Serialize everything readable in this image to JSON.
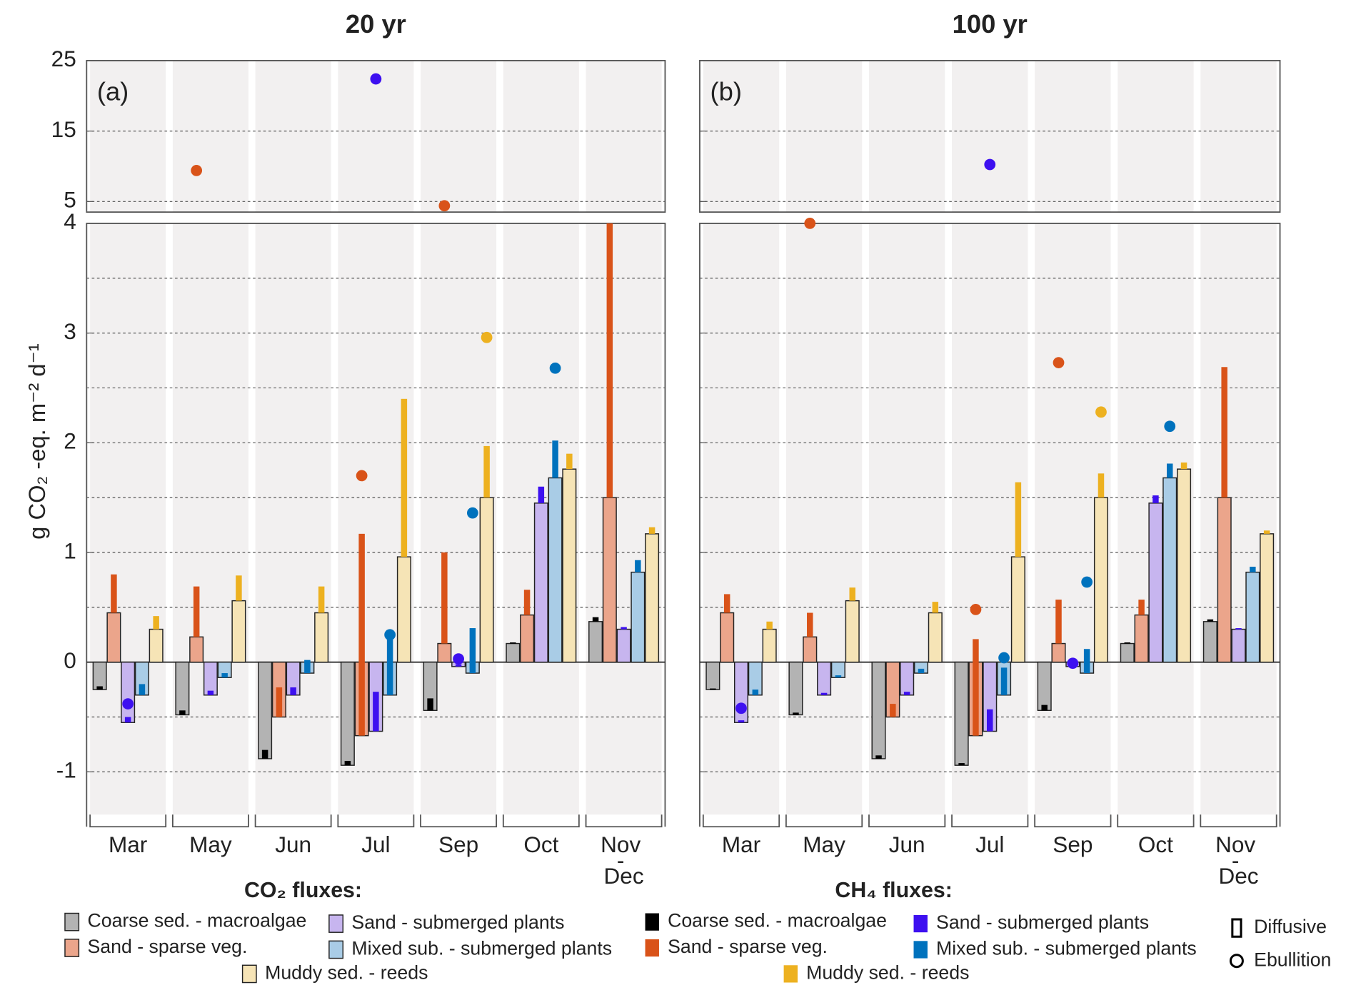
{
  "legend": {
    "co2_title": "CO₂ fluxes:",
    "ch4_title": "CH₄ fluxes:",
    "diffusive": "Diffusive",
    "ebullition": "Ebullition"
  },
  "chart_data": [
    {
      "type": "bar",
      "title": "20 yr",
      "panel_label": "(a)",
      "ylabel": "g CO₂ -eq. m⁻² d⁻¹",
      "categories": [
        "Mar",
        "May",
        "Jun",
        "Jul",
        "Sep",
        "Oct",
        "Nov - Dec"
      ],
      "ylim": [
        -1.5,
        4
      ],
      "yticks": [
        -1,
        0,
        1,
        2,
        3,
        4
      ],
      "minor_yticks": [
        -0.5,
        0.5,
        1.5,
        2.5,
        3.5
      ],
      "ylim_upper": [
        3.5,
        25
      ],
      "yticks_upper": [
        5,
        15,
        25
      ],
      "grid": true,
      "series": [
        {
          "name": "Coarse sed. - macroalgae",
          "gas": "CO2",
          "color": "#b3b3b3",
          "values": [
            -0.25,
            -0.48,
            -0.88,
            -0.94,
            -0.44,
            0.17,
            0.37
          ]
        },
        {
          "name": "Sand - sparse veg.",
          "gas": "CO2",
          "color": "#eba58b",
          "values": [
            0.45,
            0.23,
            -0.5,
            -0.67,
            0.17,
            0.43,
            1.5
          ]
        },
        {
          "name": "Sand - submerged plants",
          "gas": "CO2",
          "color": "#c7b5ef",
          "values": [
            -0.55,
            -0.3,
            -0.3,
            -0.63,
            -0.04,
            1.45,
            0.3
          ]
        },
        {
          "name": "Mixed sub. - submerged plants",
          "gas": "CO2",
          "color": "#a9cce6",
          "values": [
            -0.3,
            -0.14,
            -0.1,
            -0.3,
            -0.1,
            1.68,
            0.82
          ]
        },
        {
          "name": "Muddy sed. - reeds",
          "gas": "CO2",
          "color": "#f6e4b6",
          "values": [
            0.3,
            0.56,
            0.45,
            0.96,
            1.5,
            1.76,
            1.17
          ]
        },
        {
          "name": "Coarse sed. - macroalgae",
          "gas": "CH4",
          "color": "#000000",
          "values": [
            0.03,
            0.04,
            0.08,
            0.04,
            0.11,
            0.01,
            0.04
          ],
          "ebullition": [
            null,
            null,
            null,
            null,
            null,
            null,
            null
          ]
        },
        {
          "name": "Sand - sparse veg.",
          "gas": "CH4",
          "color": "#d95319",
          "values": [
            0.35,
            0.46,
            0.27,
            1.84,
            0.83,
            0.23,
            2.5
          ],
          "ebullition": [
            null,
            9.4,
            null,
            1.7,
            4.4,
            null,
            null
          ]
        },
        {
          "name": "Sand - submerged plants",
          "gas": "CH4",
          "color": "#3d10f0",
          "values": [
            0.05,
            0.04,
            0.07,
            0.36,
            0.02,
            0.15,
            0.02
          ],
          "ebullition": [
            -0.38,
            null,
            null,
            22.4,
            0.03,
            null,
            null
          ]
        },
        {
          "name": "Mixed sub. - submerged plants",
          "gas": "CH4",
          "color": "#0072bd",
          "values": [
            0.1,
            0.04,
            0.12,
            0.55,
            0.41,
            0.34,
            0.11
          ],
          "ebullition": [
            null,
            null,
            null,
            0.25,
            1.36,
            2.68,
            null
          ]
        },
        {
          "name": "Muddy sed. - reeds",
          "gas": "CH4",
          "color": "#edb120",
          "values": [
            0.12,
            0.23,
            0.24,
            1.44,
            0.47,
            0.14,
            0.06
          ],
          "ebullition": [
            null,
            null,
            null,
            null,
            2.96,
            null,
            null
          ]
        }
      ]
    },
    {
      "type": "bar",
      "title": "100 yr",
      "panel_label": "(b)",
      "categories": [
        "Mar",
        "May",
        "Jun",
        "Jul",
        "Sep",
        "Oct",
        "Nov - Dec"
      ],
      "ylim": [
        -1.5,
        4
      ],
      "yticks": [
        -1,
        0,
        1,
        2,
        3,
        4
      ],
      "minor_yticks": [
        -0.5,
        0.5,
        1.5,
        2.5,
        3.5
      ],
      "ylim_upper": [
        3.5,
        25
      ],
      "yticks_upper": [
        5,
        15,
        25
      ],
      "grid": true,
      "series": [
        {
          "name": "Coarse sed. - macroalgae",
          "gas": "CO2",
          "color": "#b3b3b3",
          "values": [
            -0.25,
            -0.48,
            -0.88,
            -0.94,
            -0.44,
            0.17,
            0.37
          ]
        },
        {
          "name": "Sand - sparse veg.",
          "gas": "CO2",
          "color": "#eba58b",
          "values": [
            0.45,
            0.23,
            -0.5,
            -0.67,
            0.17,
            0.43,
            1.5
          ]
        },
        {
          "name": "Sand - submerged plants",
          "gas": "CO2",
          "color": "#c7b5ef",
          "values": [
            -0.55,
            -0.3,
            -0.3,
            -0.63,
            -0.04,
            1.45,
            0.3
          ]
        },
        {
          "name": "Mixed sub. - submerged plants",
          "gas": "CO2",
          "color": "#a9cce6",
          "values": [
            -0.3,
            -0.14,
            -0.1,
            -0.3,
            -0.1,
            1.68,
            0.82
          ]
        },
        {
          "name": "Muddy sed. - reeds",
          "gas": "CO2",
          "color": "#f6e4b6",
          "values": [
            0.3,
            0.56,
            0.45,
            0.96,
            1.5,
            1.76,
            1.17
          ]
        },
        {
          "name": "Coarse sed. - macroalgae",
          "gas": "CH4",
          "color": "#000000",
          "values": [
            0.01,
            0.02,
            0.03,
            0.02,
            0.05,
            0.01,
            0.02
          ],
          "ebullition": [
            null,
            null,
            null,
            null,
            null,
            null,
            null
          ]
        },
        {
          "name": "Sand - sparse veg.",
          "gas": "CH4",
          "color": "#d95319",
          "values": [
            0.17,
            0.22,
            0.12,
            0.88,
            0.4,
            0.14,
            1.19
          ],
          "ebullition": [
            null,
            4.0,
            null,
            0.48,
            2.73,
            null,
            null
          ]
        },
        {
          "name": "Sand - submerged plants",
          "gas": "CH4",
          "color": "#3d10f0",
          "values": [
            0.02,
            0.02,
            0.03,
            0.2,
            0.01,
            0.07,
            0.01
          ],
          "ebullition": [
            -0.42,
            null,
            null,
            10.25,
            -0.01,
            null,
            null
          ]
        },
        {
          "name": "Mixed sub. - submerged plants",
          "gas": "CH4",
          "color": "#0072bd",
          "values": [
            0.05,
            0.02,
            0.04,
            0.25,
            0.22,
            0.13,
            0.05
          ],
          "ebullition": [
            null,
            null,
            null,
            0.04,
            0.73,
            2.15,
            null
          ]
        },
        {
          "name": "Muddy sed. - reeds",
          "gas": "CH4",
          "color": "#edb120",
          "values": [
            0.07,
            0.12,
            0.1,
            0.68,
            0.22,
            0.06,
            0.03
          ],
          "ebullition": [
            null,
            null,
            null,
            null,
            2.28,
            null,
            null
          ]
        }
      ]
    }
  ]
}
